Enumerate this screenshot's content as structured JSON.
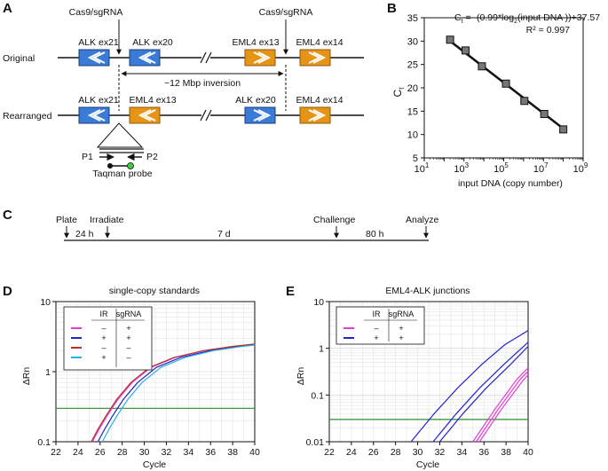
{
  "colors": {
    "alk": "#3b7bd8",
    "eml4": "#e59415",
    "green_line": "#2e8b2e",
    "magenta": "#e63ad8",
    "blue": "#2323c8",
    "red": "#b8322a",
    "cyan": "#2aaee6",
    "probe_green": "#3fce3f"
  },
  "panelA": {
    "label": "A",
    "row_original": "Original",
    "row_rearranged": "Rearranged",
    "cas9_left": "Cas9/sgRNA",
    "cas9_right": "Cas9/sgRNA",
    "inversion": "~12 Mbp inversion",
    "orig_exons": [
      "ALK ex21",
      "ALK ex20",
      "EML4 ex13",
      "EML4 ex14"
    ],
    "rearr_exons": [
      "ALK ex21",
      "EML4 ex13",
      "ALK ex20",
      "EML4 ex14"
    ],
    "primer1": "P1",
    "primer2": "P2",
    "probe": "Taqman probe"
  },
  "panelB": {
    "label": "B",
    "equation_pre": "C",
    "equation_sub": "t",
    "equation_mid": " = -(0.99*log",
    "equation_sub2": "2",
    "equation_post": "(input DNA ))+37.57",
    "r2": "R² = 0.997",
    "ylabel_main": "C",
    "ylabel_sub": "t",
    "xlabel": "input DNA (copy number)"
  },
  "panelC": {
    "label": "C",
    "events": [
      "Plate",
      "Irradiate",
      "Challenge",
      "Analyze"
    ],
    "intervals": [
      "24 h",
      "7 d",
      "80 h"
    ]
  },
  "panelD": {
    "label": "D",
    "title": "single-copy standards",
    "legend_h1": "IR",
    "legend_h2": "sgRNA",
    "legend_rows": [
      {
        "ir": "–",
        "sg": "+"
      },
      {
        "ir": "+",
        "sg": "+"
      },
      {
        "ir": "–",
        "sg": "–"
      },
      {
        "ir": "+",
        "sg": "–"
      }
    ]
  },
  "panelE": {
    "label": "E",
    "title": "EML4-ALK junctions",
    "legend_h1": "IR",
    "legend_h2": "sgRNA",
    "legend_rows": [
      {
        "ir": "–",
        "sg": "+"
      },
      {
        "ir": "+",
        "sg": "+"
      }
    ]
  },
  "chart_data": [
    {
      "type": "scatter",
      "title": "",
      "xlabel": "input DNA (copy number)",
      "ylabel": "Ct",
      "x_scale": "log10",
      "xlim": [
        10,
        1000000000
      ],
      "ylim": [
        5,
        35
      ],
      "x_tick_exponents": [
        1,
        3,
        5,
        7,
        9
      ],
      "y_ticks": [
        5,
        10,
        15,
        20,
        25,
        30,
        35
      ],
      "x": [
        200,
        1200,
        8000,
        130000,
        1100000,
        11000000,
        100000000
      ],
      "y": [
        30.3,
        28.0,
        24.6,
        20.9,
        17.2,
        14.4,
        11.1
      ],
      "fit": {
        "slope_log2": -0.99,
        "intercept": 37.57,
        "r2": 0.997
      }
    },
    {
      "type": "line",
      "title": "single-copy standards",
      "xlabel": "Cycle",
      "ylabel": "ΔRn",
      "x_scale": "linear",
      "y_scale": "log10",
      "xlim": [
        22,
        40
      ],
      "ylim": [
        0.1,
        10
      ],
      "x_ticks": [
        22,
        24,
        26,
        28,
        30,
        32,
        34,
        36,
        38,
        40
      ],
      "y_ticks": [
        "0.1",
        "1",
        "10"
      ],
      "threshold": 0.3,
      "series": [
        {
          "name": "IR –, sgRNA +",
          "color": "#e63ad8",
          "x": [
            25.3,
            25.9,
            26.6,
            27.6,
            28.9,
            30.6,
            32.8,
            35.5,
            38.2,
            40
          ],
          "y": [
            0.1,
            0.15,
            0.23,
            0.4,
            0.7,
            1.15,
            1.6,
            2.0,
            2.3,
            2.45
          ]
        },
        {
          "name": "IR +, sgRNA +",
          "color": "#2323c8",
          "x": [
            25.8,
            26.4,
            27.1,
            28.1,
            29.4,
            31.1,
            33.3,
            36.0,
            38.5,
            40
          ],
          "y": [
            0.1,
            0.15,
            0.23,
            0.4,
            0.7,
            1.15,
            1.6,
            2.0,
            2.3,
            2.42
          ]
        },
        {
          "name": "IR –, sgRNA –",
          "color": "#b8322a",
          "x": [
            25.2,
            25.8,
            26.5,
            27.5,
            28.8,
            30.5,
            32.7,
            35.4,
            38.1,
            40
          ],
          "y": [
            0.1,
            0.15,
            0.23,
            0.4,
            0.7,
            1.15,
            1.6,
            2.0,
            2.3,
            2.48
          ]
        },
        {
          "name": "IR +, sgRNA –",
          "color": "#2aaee6",
          "x": [
            26.2,
            26.8,
            27.5,
            28.5,
            29.8,
            31.5,
            33.7,
            36.3,
            38.8,
            40
          ],
          "y": [
            0.1,
            0.15,
            0.23,
            0.4,
            0.7,
            1.15,
            1.6,
            2.0,
            2.28,
            2.4
          ]
        }
      ]
    },
    {
      "type": "line",
      "title": "EML4-ALK junctions",
      "xlabel": "Cycle",
      "ylabel": "ΔRn",
      "x_scale": "linear",
      "y_scale": "log10",
      "xlim": [
        22,
        40
      ],
      "ylim": [
        0.01,
        10
      ],
      "x_ticks": [
        22,
        24,
        26,
        28,
        30,
        32,
        34,
        36,
        38,
        40
      ],
      "y_ticks": [
        "0.01",
        "0.1",
        "1",
        "10"
      ],
      "threshold": 0.03,
      "series": [
        {
          "name": "IR –, sgRNA + (rep1)",
          "color": "#e63ad8",
          "x": [
            35.0,
            37.0,
            39.0,
            40
          ],
          "y": [
            0.01,
            0.05,
            0.22,
            0.38
          ]
        },
        {
          "name": "IR –, sgRNA + (rep2)",
          "color": "#e63ad8",
          "x": [
            35.3,
            37.3,
            39.3,
            40
          ],
          "y": [
            0.01,
            0.05,
            0.22,
            0.32
          ]
        },
        {
          "name": "IR –, sgRNA + (rep3)",
          "color": "#e63ad8",
          "x": [
            35.6,
            37.6,
            39.5,
            40
          ],
          "y": [
            0.01,
            0.05,
            0.2,
            0.27
          ]
        },
        {
          "name": "IR +, sgRNA + (rep1)",
          "color": "#2323c8",
          "x": [
            29.4,
            31.5,
            33.6,
            35.8,
            37.9,
            40
          ],
          "y": [
            0.01,
            0.04,
            0.14,
            0.45,
            1.2,
            2.4
          ]
        },
        {
          "name": "IR +, sgRNA + (rep2)",
          "color": "#2323c8",
          "x": [
            31.4,
            33.5,
            35.6,
            37.8,
            40
          ],
          "y": [
            0.01,
            0.04,
            0.14,
            0.45,
            1.35
          ]
        },
        {
          "name": "IR +, sgRNA + (rep3)",
          "color": "#2323c8",
          "x": [
            32.0,
            34.1,
            36.2,
            38.4,
            40
          ],
          "y": [
            0.01,
            0.04,
            0.14,
            0.45,
            1.1
          ]
        }
      ]
    }
  ]
}
